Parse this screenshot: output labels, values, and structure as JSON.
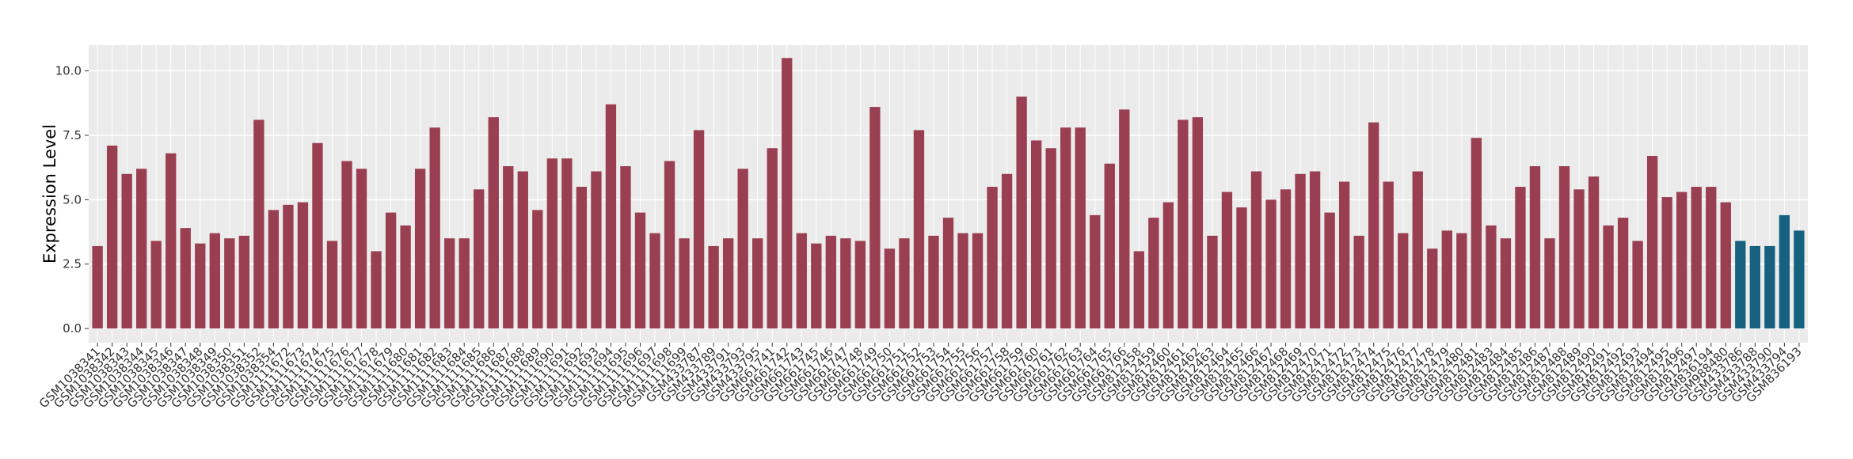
{
  "chart_data": {
    "type": "bar",
    "ylabel": "Expression Level",
    "categories": [
      "GSM1038341",
      "GSM1038342",
      "GSM1038343",
      "GSM1038344",
      "GSM1038345",
      "GSM1038346",
      "GSM1038347",
      "GSM1038348",
      "GSM1038349",
      "GSM1038350",
      "GSM1038351",
      "GSM1038352",
      "GSM1038354",
      "GSM1111672",
      "GSM1111673",
      "GSM1111674",
      "GSM1111675",
      "GSM1111676",
      "GSM1111677",
      "GSM1111678",
      "GSM1111679",
      "GSM1111680",
      "GSM1111681",
      "GSM1111682",
      "GSM1111683",
      "GSM1111684",
      "GSM1111685",
      "GSM1111686",
      "GSM1111687",
      "GSM1111688",
      "GSM1111689",
      "GSM1111690",
      "GSM1111691",
      "GSM1111692",
      "GSM1111693",
      "GSM1111694",
      "GSM1111695",
      "GSM1111696",
      "GSM1111697",
      "GSM1111698",
      "GSM1111699",
      "GSM433787",
      "GSM433789",
      "GSM433791",
      "GSM433793",
      "GSM433795",
      "GSM661741",
      "GSM661742",
      "GSM661743",
      "GSM661745",
      "GSM661746",
      "GSM661747",
      "GSM661748",
      "GSM661749",
      "GSM661750",
      "GSM661751",
      "GSM661752",
      "GSM661753",
      "GSM661754",
      "GSM661755",
      "GSM661756",
      "GSM661757",
      "GSM661758",
      "GSM661759",
      "GSM661760",
      "GSM661761",
      "GSM661762",
      "GSM661763",
      "GSM661764",
      "GSM661765",
      "GSM661766",
      "GSM812458",
      "GSM812459",
      "GSM812460",
      "GSM812461",
      "GSM812462",
      "GSM812463",
      "GSM812464",
      "GSM812465",
      "GSM812466",
      "GSM812467",
      "GSM812468",
      "GSM812469",
      "GSM812470",
      "GSM812471",
      "GSM812472",
      "GSM812473",
      "GSM812474",
      "GSM812475",
      "GSM812476",
      "GSM812477",
      "GSM812478",
      "GSM812479",
      "GSM812480",
      "GSM812481",
      "GSM812483",
      "GSM812484",
      "GSM812485",
      "GSM812486",
      "GSM812487",
      "GSM812488",
      "GSM812489",
      "GSM812490",
      "GSM812491",
      "GSM812492",
      "GSM812493",
      "GSM812494",
      "GSM812495",
      "GSM812496",
      "GSM812497",
      "GSM836194",
      "GSM988480",
      "GSM433786",
      "GSM433788",
      "GSM433790",
      "GSM433794",
      "GSM836193"
    ],
    "values": [
      3.2,
      7.1,
      6.0,
      6.2,
      3.4,
      6.8,
      3.9,
      3.3,
      3.7,
      3.5,
      3.6,
      8.1,
      4.6,
      4.8,
      4.9,
      7.2,
      3.4,
      6.5,
      6.2,
      3.0,
      4.5,
      4.0,
      6.2,
      7.8,
      3.5,
      3.5,
      5.4,
      8.2,
      6.3,
      6.1,
      4.6,
      6.6,
      6.6,
      5.5,
      6.1,
      8.7,
      6.3,
      4.5,
      3.7,
      6.5,
      3.5,
      7.7,
      3.2,
      3.5,
      6.2,
      3.5,
      7.0,
      10.5,
      3.7,
      3.3,
      3.6,
      3.5,
      3.4,
      8.6,
      3.1,
      3.5,
      7.7,
      3.6,
      4.3,
      3.7,
      3.7,
      5.5,
      6.0,
      9.0,
      7.3,
      7.0,
      7.8,
      7.8,
      4.4,
      6.4,
      8.5,
      3.0,
      4.3,
      4.9,
      8.1,
      8.2,
      3.6,
      5.3,
      4.7,
      6.1,
      5.0,
      5.4,
      6.0,
      6.1,
      4.5,
      5.7,
      3.6,
      8.0,
      5.7,
      3.7,
      6.1,
      3.1,
      3.8,
      3.7,
      7.4,
      4.0,
      3.5,
      5.5,
      6.3,
      3.5,
      6.3,
      5.4,
      5.9,
      4.0,
      4.3,
      3.4,
      6.7,
      5.1,
      5.3,
      5.5,
      5.5,
      4.9,
      3.4,
      3.2,
      3.2,
      4.4,
      3.8
    ],
    "colors": [
      "#9a3f51",
      "#9a3f51",
      "#9a3f51",
      "#9a3f51",
      "#9a3f51",
      "#9a3f51",
      "#9a3f51",
      "#9a3f51",
      "#9a3f51",
      "#9a3f51",
      "#9a3f51",
      "#9a3f51",
      "#9a3f51",
      "#9a3f51",
      "#9a3f51",
      "#9a3f51",
      "#9a3f51",
      "#9a3f51",
      "#9a3f51",
      "#9a3f51",
      "#9a3f51",
      "#9a3f51",
      "#9a3f51",
      "#9a3f51",
      "#9a3f51",
      "#9a3f51",
      "#9a3f51",
      "#9a3f51",
      "#9a3f51",
      "#9a3f51",
      "#9a3f51",
      "#9a3f51",
      "#9a3f51",
      "#9a3f51",
      "#9a3f51",
      "#9a3f51",
      "#9a3f51",
      "#9a3f51",
      "#9a3f51",
      "#9a3f51",
      "#9a3f51",
      "#9a3f51",
      "#9a3f51",
      "#9a3f51",
      "#9a3f51",
      "#9a3f51",
      "#9a3f51",
      "#9a3f51",
      "#9a3f51",
      "#9a3f51",
      "#9a3f51",
      "#9a3f51",
      "#9a3f51",
      "#9a3f51",
      "#9a3f51",
      "#9a3f51",
      "#9a3f51",
      "#9a3f51",
      "#9a3f51",
      "#9a3f51",
      "#9a3f51",
      "#9a3f51",
      "#9a3f51",
      "#9a3f51",
      "#9a3f51",
      "#9a3f51",
      "#9a3f51",
      "#9a3f51",
      "#9a3f51",
      "#9a3f51",
      "#9a3f51",
      "#9a3f51",
      "#9a3f51",
      "#9a3f51",
      "#9a3f51",
      "#9a3f51",
      "#9a3f51",
      "#9a3f51",
      "#9a3f51",
      "#9a3f51",
      "#9a3f51",
      "#9a3f51",
      "#9a3f51",
      "#9a3f51",
      "#9a3f51",
      "#9a3f51",
      "#9a3f51",
      "#9a3f51",
      "#9a3f51",
      "#9a3f51",
      "#9a3f51",
      "#9a3f51",
      "#9a3f51",
      "#9a3f51",
      "#9a3f51",
      "#9a3f51",
      "#9a3f51",
      "#9a3f51",
      "#9a3f51",
      "#9a3f51",
      "#9a3f51",
      "#9a3f51",
      "#9a3f51",
      "#9a3f51",
      "#9a3f51",
      "#9a3f51",
      "#9a3f51",
      "#9a3f51",
      "#9a3f51",
      "#9a3f51",
      "#9a3f51",
      "#9a3f51",
      "#15617f",
      "#15617f",
      "#15617f",
      "#15617f",
      "#15617f"
    ],
    "ylim": [
      -0.55,
      11.0
    ],
    "yticks": [
      {
        "value": 0,
        "label": "0.0"
      },
      {
        "value": 2.5,
        "label": "2.5"
      },
      {
        "value": 5,
        "label": "5.0"
      },
      {
        "value": 7.5,
        "label": "7.5"
      },
      {
        "value": 10,
        "label": "10.0"
      }
    ],
    "grid": true
  }
}
